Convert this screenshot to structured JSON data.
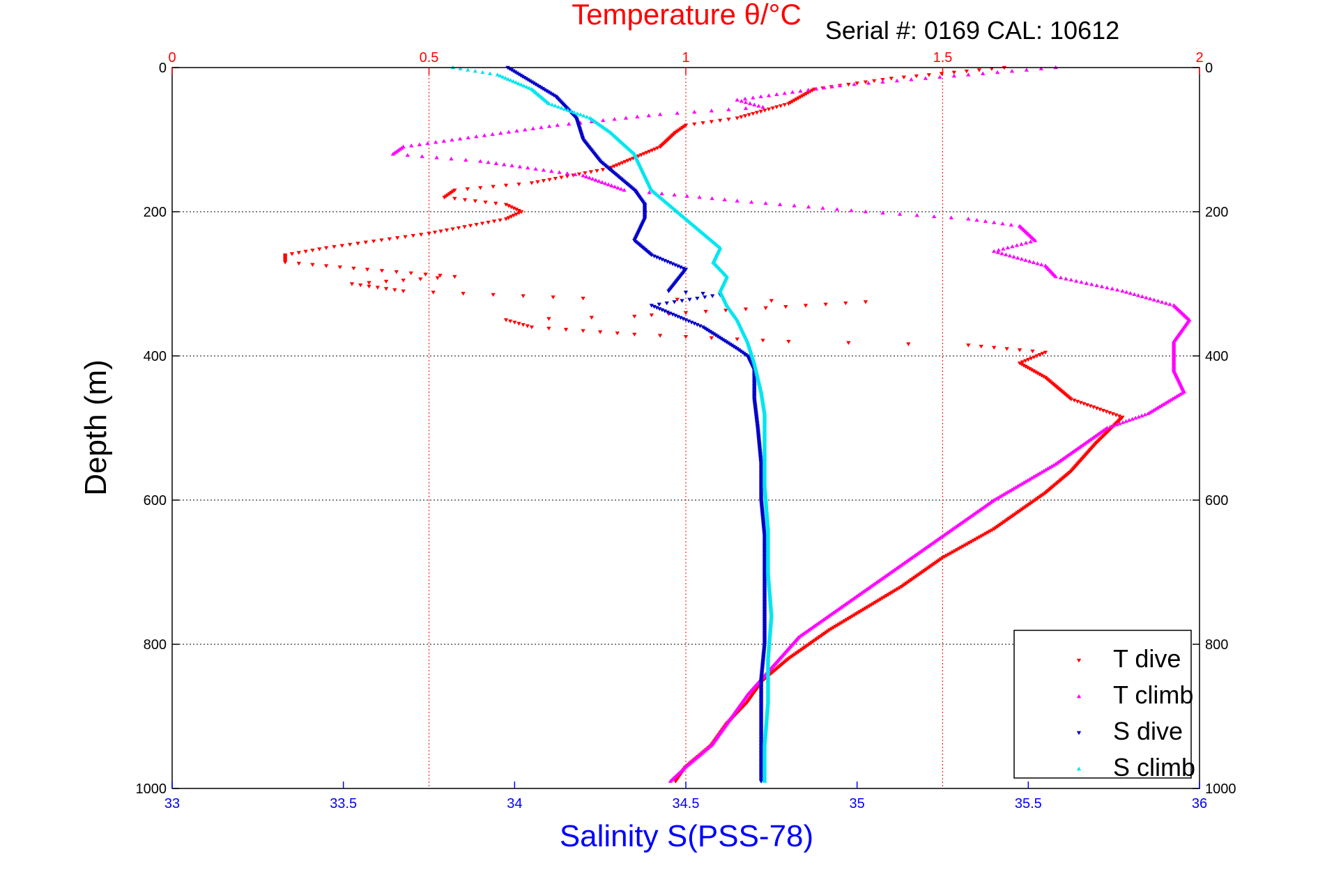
{
  "chart_data": {
    "type": "scatter",
    "title_top": "Temperature θ/°C",
    "serial_label": "Serial #: 0169 CAL: 10612",
    "ylabel": "Depth (m)",
    "xlabel_bottom": "Salinity S(PSS-78)",
    "y_axis": {
      "min": 0,
      "max": 1000,
      "reversed": true,
      "ticks": [
        0,
        200,
        400,
        600,
        800,
        1000
      ]
    },
    "x_bottom": {
      "min": 33,
      "max": 36,
      "ticks": [
        33,
        33.5,
        34,
        34.5,
        35,
        35.5,
        36
      ],
      "tick_labels": [
        "33",
        "33.5",
        "34",
        "34.5",
        "35",
        "35.5",
        "36"
      ]
    },
    "x_top": {
      "min": 0,
      "max": 2,
      "ticks": [
        0,
        0.5,
        1,
        1.5,
        2
      ],
      "tick_labels": [
        "0",
        "0.5",
        "1",
        "1.5",
        "2"
      ]
    },
    "grid": true,
    "legend_position": "bottom-right",
    "colors": {
      "T_dive": "#ff0000",
      "T_climb": "#ff00ff",
      "S_dive": "#0000c8",
      "S_climb": "#00e5ee",
      "salinity_axis": "#0000ff",
      "temperature_axis": "#ff0000"
    },
    "series": [
      {
        "name": "T dive",
        "axis": "top",
        "points": [
          [
            1.62,
            0
          ],
          [
            1.4,
            15
          ],
          [
            1.25,
            30
          ],
          [
            1.2,
            50
          ],
          [
            1.1,
            70
          ],
          [
            1.0,
            80
          ],
          [
            0.98,
            90
          ],
          [
            0.95,
            110
          ],
          [
            0.85,
            140
          ],
          [
            0.7,
            160
          ],
          [
            0.55,
            170
          ],
          [
            0.53,
            180
          ],
          [
            0.65,
            190
          ],
          [
            0.68,
            200
          ],
          [
            0.65,
            210
          ],
          [
            0.5,
            230
          ],
          [
            0.3,
            250
          ],
          [
            0.22,
            260
          ],
          [
            0.22,
            270
          ],
          [
            0.38,
            280
          ],
          [
            0.55,
            290
          ],
          [
            0.35,
            300
          ],
          [
            0.45,
            310
          ],
          [
            0.8,
            320
          ],
          [
            1.35,
            325
          ],
          [
            1.0,
            340
          ],
          [
            0.9,
            345
          ],
          [
            0.65,
            350
          ],
          [
            0.7,
            360
          ],
          [
            0.9,
            370
          ],
          [
            1.2,
            380
          ],
          [
            1.55,
            385
          ],
          [
            1.7,
            395
          ],
          [
            1.65,
            410
          ],
          [
            1.7,
            430
          ],
          [
            1.75,
            460
          ],
          [
            1.85,
            485
          ],
          [
            1.8,
            520
          ],
          [
            1.75,
            560
          ],
          [
            1.7,
            590
          ],
          [
            1.6,
            640
          ],
          [
            1.5,
            680
          ],
          [
            1.42,
            720
          ],
          [
            1.35,
            750
          ],
          [
            1.28,
            780
          ],
          [
            1.2,
            820
          ],
          [
            1.15,
            850
          ],
          [
            1.12,
            880
          ],
          [
            1.08,
            910
          ],
          [
            1.05,
            940
          ],
          [
            1.0,
            970
          ],
          [
            0.98,
            990
          ]
        ]
      },
      {
        "name": "T climb",
        "axis": "top",
        "points": [
          [
            1.72,
            0
          ],
          [
            1.55,
            10
          ],
          [
            1.3,
            25
          ],
          [
            1.1,
            45
          ],
          [
            1.15,
            55
          ],
          [
            0.95,
            65
          ],
          [
            0.75,
            80
          ],
          [
            0.45,
            110
          ],
          [
            0.43,
            120
          ],
          [
            0.6,
            130
          ],
          [
            0.8,
            150
          ],
          [
            0.88,
            170
          ],
          [
            1.1,
            185
          ],
          [
            1.35,
            200
          ],
          [
            1.55,
            210
          ],
          [
            1.65,
            220
          ],
          [
            1.68,
            240
          ],
          [
            1.6,
            255
          ],
          [
            1.7,
            275
          ],
          [
            1.72,
            290
          ],
          [
            1.85,
            310
          ],
          [
            1.95,
            330
          ],
          [
            1.98,
            350
          ],
          [
            1.95,
            380
          ],
          [
            1.95,
            420
          ],
          [
            1.97,
            450
          ],
          [
            1.9,
            480
          ],
          [
            1.82,
            500
          ],
          [
            1.72,
            550
          ],
          [
            1.6,
            600
          ],
          [
            1.5,
            650
          ],
          [
            1.4,
            700
          ],
          [
            1.3,
            750
          ],
          [
            1.22,
            790
          ],
          [
            1.17,
            830
          ],
          [
            1.12,
            870
          ],
          [
            1.08,
            910
          ],
          [
            1.05,
            940
          ],
          [
            1.0,
            970
          ],
          [
            0.97,
            990
          ]
        ]
      },
      {
        "name": "S dive",
        "axis": "bottom",
        "points": [
          [
            33.98,
            0
          ],
          [
            34.05,
            20
          ],
          [
            34.12,
            40
          ],
          [
            34.18,
            70
          ],
          [
            34.2,
            100
          ],
          [
            34.25,
            130
          ],
          [
            34.3,
            150
          ],
          [
            34.35,
            170
          ],
          [
            34.38,
            190
          ],
          [
            34.38,
            210
          ],
          [
            34.35,
            240
          ],
          [
            34.4,
            260
          ],
          [
            34.5,
            280
          ],
          [
            34.45,
            310
          ],
          [
            34.6,
            315
          ],
          [
            34.4,
            330
          ],
          [
            34.5,
            350
          ],
          [
            34.55,
            360
          ],
          [
            34.65,
            390
          ],
          [
            34.68,
            400
          ],
          [
            34.7,
            420
          ],
          [
            34.7,
            460
          ],
          [
            34.71,
            500
          ],
          [
            34.72,
            550
          ],
          [
            34.72,
            600
          ],
          [
            34.73,
            650
          ],
          [
            34.73,
            700
          ],
          [
            34.73,
            750
          ],
          [
            34.73,
            800
          ],
          [
            34.72,
            850
          ],
          [
            34.72,
            900
          ],
          [
            34.72,
            950
          ],
          [
            34.72,
            990
          ]
        ]
      },
      {
        "name": "S climb",
        "axis": "bottom",
        "points": [
          [
            33.82,
            0
          ],
          [
            33.95,
            10
          ],
          [
            34.05,
            30
          ],
          [
            34.1,
            50
          ],
          [
            34.22,
            70
          ],
          [
            34.28,
            90
          ],
          [
            34.35,
            120
          ],
          [
            34.38,
            150
          ],
          [
            34.4,
            170
          ],
          [
            34.45,
            190
          ],
          [
            34.5,
            210
          ],
          [
            34.55,
            230
          ],
          [
            34.6,
            250
          ],
          [
            34.58,
            270
          ],
          [
            34.62,
            290
          ],
          [
            34.6,
            310
          ],
          [
            34.62,
            330
          ],
          [
            34.65,
            350
          ],
          [
            34.68,
            380
          ],
          [
            34.7,
            410
          ],
          [
            34.72,
            450
          ],
          [
            34.73,
            480
          ],
          [
            34.73,
            520
          ],
          [
            34.73,
            580
          ],
          [
            34.74,
            640
          ],
          [
            34.74,
            700
          ],
          [
            34.75,
            760
          ],
          [
            34.74,
            820
          ],
          [
            34.74,
            880
          ],
          [
            34.73,
            940
          ],
          [
            34.73,
            990
          ]
        ]
      }
    ]
  }
}
